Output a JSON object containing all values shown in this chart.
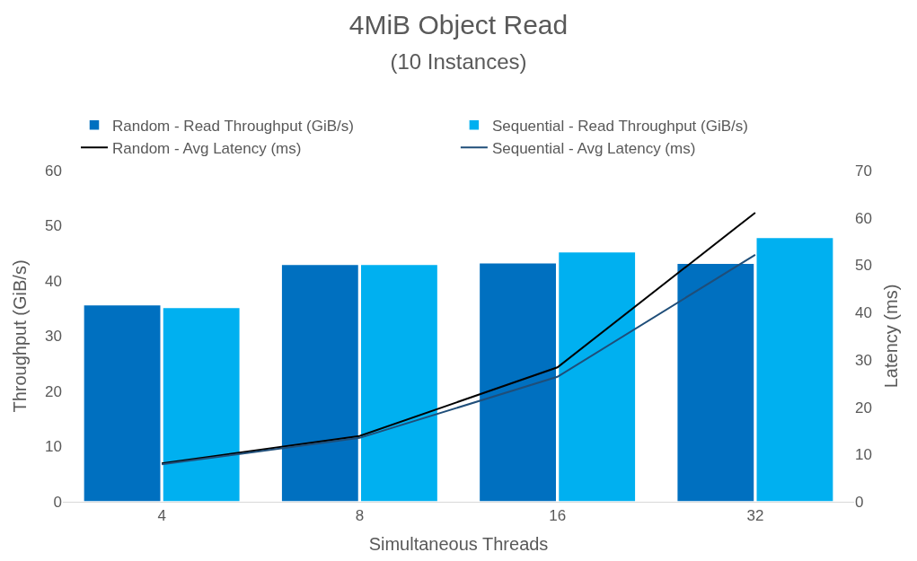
{
  "chart_data": {
    "type": "bar",
    "title": "4MiB Object Read",
    "subtitle": "(10 Instances)",
    "xlabel": "Simultaneous Threads",
    "ylabel": "Throughput (GiB/s)",
    "y2label": "Latency (ms)",
    "categories": [
      "4",
      "8",
      "16",
      "32"
    ],
    "series": [
      {
        "name": "Random - Read Throughput (GiB/s)",
        "color": "#0070c0",
        "values": [
          35.7,
          43.0,
          43.3,
          43.2
        ]
      },
      {
        "name": "Sequential - Read Throughput (GiB/s)",
        "color": "#00b0f0",
        "values": [
          35.2,
          43.0,
          45.3,
          47.9
        ]
      },
      {
        "name": "Random - Avg Latency (ms)",
        "type": "line",
        "axis": "y2",
        "color": "#000000",
        "values": [
          8.1,
          13.9,
          28.4,
          61.1
        ]
      },
      {
        "name": "Sequential - Avg Latency (ms)",
        "type": "line",
        "axis": "y2",
        "color": "#1f4e79",
        "values": [
          7.9,
          13.5,
          26.4,
          52.2
        ]
      }
    ],
    "ylim": [
      0,
      60
    ],
    "yticks": [
      0,
      10,
      20,
      30,
      40,
      50,
      60
    ],
    "y2lim": [
      0,
      70
    ],
    "y2ticks": [
      0,
      10,
      20,
      30,
      40,
      50,
      60,
      70
    ],
    "grid": false,
    "legend": "top",
    "marker": "none",
    "line_style": "solid"
  }
}
